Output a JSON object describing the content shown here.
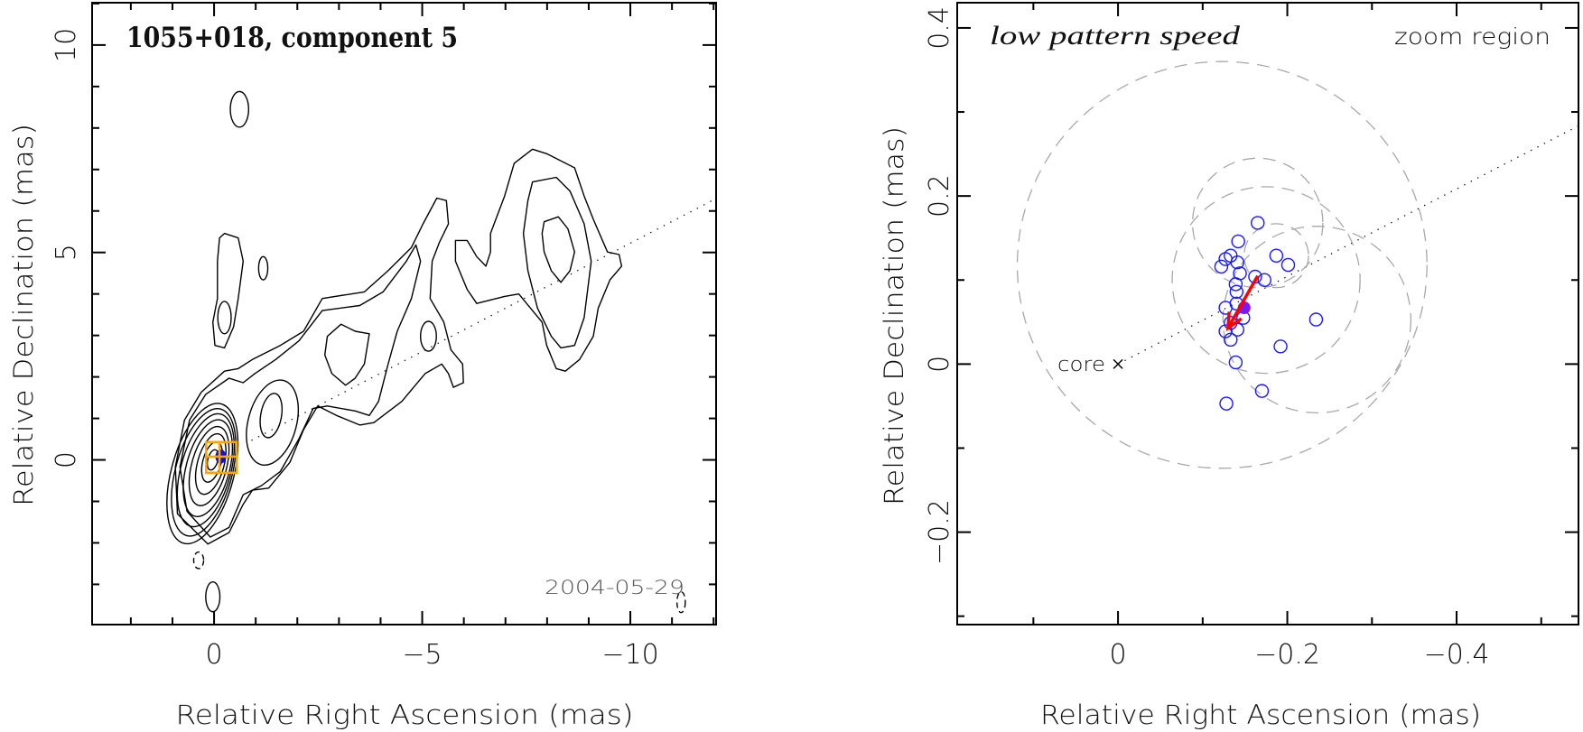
{
  "chart_data": [
    {
      "type": "contour",
      "panel": "left",
      "title": "1055+018, component 5",
      "annotation_date": "2004-05-29",
      "xlabel": "Relative Right Ascension (mas)",
      "ylabel": "Relative Declination (mas)",
      "xlim": [
        2.93,
        -12.06
      ],
      "ylim": [
        -3.97,
        11.02
      ],
      "xticks": {
        "values": [
          0,
          -5,
          -10
        ],
        "labels": [
          "0",
          "−5",
          "−10"
        ],
        "minor_step": 1
      },
      "yticks": {
        "values": [
          0,
          5,
          10
        ],
        "labels": [
          "0",
          "5",
          "10"
        ],
        "minor_step": 1
      },
      "colors": {
        "contour": "#000000",
        "box": "#FFA500",
        "component": "#1010E0"
      },
      "jet_axis": {
        "from": [
          -0.9,
          0.47
        ],
        "to": [
          -12.06,
          6.3
        ]
      },
      "zoom_box": {
        "x": [
          0.19,
          -0.544
        ],
        "y": [
          -0.31,
          0.43
        ],
        "cross": [
          -0.13,
          0.08
        ]
      },
      "component": {
        "cx": -0.16,
        "cy": 0.08,
        "rx": 0.13,
        "ry": 0.17
      },
      "core_ellipses": [
        {
          "cx": 0.03,
          "cy": 0.0,
          "rx": 0.12,
          "ry": 0.25,
          "angle": 15
        },
        {
          "cx": 0.05,
          "cy": -0.05,
          "rx": 0.22,
          "ry": 0.5,
          "angle": 15
        },
        {
          "cx": 0.08,
          "cy": -0.1,
          "rx": 0.32,
          "ry": 0.75,
          "angle": 15
        },
        {
          "cx": 0.12,
          "cy": -0.15,
          "rx": 0.42,
          "ry": 0.98,
          "angle": 15
        },
        {
          "cx": 0.15,
          "cy": -0.2,
          "rx": 0.52,
          "ry": 1.2,
          "angle": 15
        },
        {
          "cx": 0.2,
          "cy": -0.25,
          "rx": 0.6,
          "ry": 1.4,
          "angle": 15
        },
        {
          "cx": 0.25,
          "cy": -0.3,
          "rx": 0.68,
          "ry": 1.58,
          "angle": 15
        },
        {
          "cx": 0.28,
          "cy": -0.33,
          "rx": 0.75,
          "ry": 1.74,
          "angle": 15
        },
        {
          "cx": -1.37,
          "cy": 1.07,
          "rx": 0.25,
          "ry": 0.54,
          "angle": 10
        },
        {
          "cx": -1.4,
          "cy": 0.9,
          "rx": 0.58,
          "ry": 1.05,
          "angle": 15
        },
        {
          "cx": -5.15,
          "cy": 2.98,
          "rx": 0.19,
          "ry": 0.36,
          "angle": 0
        },
        {
          "cx": -0.61,
          "cy": 8.45,
          "rx": 0.22,
          "ry": 0.43,
          "angle": 0
        },
        {
          "cx": -0.25,
          "cy": 3.43,
          "rx": 0.16,
          "ry": 0.39,
          "angle": 0
        },
        {
          "cx": -1.18,
          "cy": 4.62,
          "rx": 0.11,
          "ry": 0.28,
          "angle": 0
        },
        {
          "cx": 0.03,
          "cy": -3.3,
          "rx": 0.17,
          "ry": 0.36,
          "angle": 0
        }
      ],
      "negative_ellipses": [
        {
          "cx": 0.37,
          "cy": -2.42,
          "rx": 0.12,
          "ry": 0.2,
          "angle": 0
        },
        {
          "cx": -11.22,
          "cy": -3.43,
          "rx": 0.1,
          "ry": 0.25,
          "angle": 0
        }
      ],
      "contours": [
        [
          [
            0.15,
            -2.03
          ],
          [
            0.88,
            -1.3
          ],
          [
            0.93,
            -0.17
          ],
          [
            0.71,
            0.96
          ],
          [
            0.31,
            1.63
          ],
          [
            -0.25,
            2.14
          ],
          [
            -0.58,
            2.2
          ],
          [
            -0.92,
            2.42
          ],
          [
            -1.59,
            2.76
          ],
          [
            -2.15,
            3.1
          ],
          [
            -2.6,
            3.89
          ],
          [
            -3.61,
            4.05
          ],
          [
            -4.18,
            4.56
          ],
          [
            -4.74,
            5.12
          ],
          [
            -5.02,
            5.69
          ],
          [
            -5.35,
            6.31
          ],
          [
            -5.58,
            6.25
          ],
          [
            -5.63,
            5.69
          ],
          [
            -5.41,
            5.24
          ],
          [
            -5.24,
            4.79
          ],
          [
            -5.19,
            3.89
          ],
          [
            -5.52,
            3.32
          ],
          [
            -5.69,
            2.65
          ],
          [
            -5.97,
            2.31
          ],
          [
            -5.99,
            1.86
          ],
          [
            -5.75,
            1.75
          ],
          [
            -5.63,
            2.08
          ],
          [
            -5.47,
            2.31
          ],
          [
            -5.07,
            2.08
          ],
          [
            -4.51,
            1.41
          ],
          [
            -3.84,
            0.9
          ],
          [
            -3.5,
            0.84
          ],
          [
            -2.94,
            1.07
          ],
          [
            -2.49,
            1.3
          ],
          [
            -2.15,
            0.73
          ],
          [
            -1.82,
            -0.06
          ],
          [
            -1.31,
            -0.68
          ],
          [
            -0.92,
            -0.73
          ],
          [
            -0.7,
            -1.07
          ],
          [
            -0.36,
            -1.75
          ]
        ],
        [
          [
            0.65,
            -1.24
          ],
          [
            0.82,
            -0.17
          ],
          [
            0.59,
            0.96
          ],
          [
            0.2,
            1.58
          ],
          [
            -0.36,
            1.97
          ],
          [
            -0.7,
            1.86
          ],
          [
            -0.98,
            2.08
          ],
          [
            -1.48,
            2.42
          ],
          [
            -2.04,
            2.87
          ],
          [
            -2.6,
            3.6
          ],
          [
            -3.5,
            3.72
          ],
          [
            -4.06,
            4.05
          ],
          [
            -4.62,
            4.79
          ],
          [
            -4.85,
            5.18
          ],
          [
            -4.96,
            4.79
          ],
          [
            -4.74,
            3.89
          ],
          [
            -4.4,
            3.1
          ],
          [
            -4.18,
            2.31
          ],
          [
            -3.95,
            1.41
          ],
          [
            -3.73,
            1.07
          ],
          [
            -3.39,
            1.18
          ],
          [
            -2.72,
            1.3
          ],
          [
            -2.38,
            1.24
          ],
          [
            -2.04,
            0.51
          ],
          [
            -1.59,
            -0.28
          ],
          [
            -1.14,
            -0.62
          ],
          [
            -0.7,
            -0.84
          ],
          [
            -0.36,
            -1.63
          ],
          [
            0.09,
            -1.86
          ]
        ],
        [
          [
            -2.72,
            2.98
          ],
          [
            -3.05,
            3.27
          ],
          [
            -3.39,
            3.1
          ],
          [
            -3.73,
            3.04
          ],
          [
            -3.61,
            2.31
          ],
          [
            -3.39,
            1.97
          ],
          [
            -3.16,
            1.8
          ],
          [
            -2.83,
            2.08
          ],
          [
            -2.66,
            2.53
          ]
        ],
        [
          [
            -0.25,
            5.46
          ],
          [
            -0.58,
            5.35
          ],
          [
            -0.7,
            4.79
          ],
          [
            -0.58,
            3.89
          ],
          [
            -0.47,
            3.21
          ],
          [
            -0.25,
            2.7
          ],
          [
            -0.02,
            2.76
          ],
          [
            0.03,
            3.32
          ],
          [
            -0.08,
            3.89
          ],
          [
            -0.08,
            4.79
          ],
          [
            -0.13,
            5.35
          ]
        ],
        [
          [
            -5.8,
            5.29
          ],
          [
            -6.08,
            5.29
          ],
          [
            -6.31,
            4.9
          ],
          [
            -6.53,
            4.67
          ],
          [
            -6.64,
            5.01
          ],
          [
            -6.64,
            5.46
          ],
          [
            -6.98,
            6.36
          ],
          [
            -7.21,
            7.15
          ],
          [
            -7.65,
            7.49
          ],
          [
            -7.99,
            7.38
          ],
          [
            -8.66,
            7.04
          ],
          [
            -8.89,
            6.36
          ],
          [
            -9.11,
            5.8
          ],
          [
            -9.45,
            5.01
          ],
          [
            -9.73,
            4.95
          ],
          [
            -9.79,
            4.67
          ],
          [
            -9.51,
            4.34
          ],
          [
            -9.23,
            3.66
          ],
          [
            -9.11,
            2.98
          ],
          [
            -8.78,
            2.42
          ],
          [
            -8.44,
            2.14
          ],
          [
            -8.22,
            2.2
          ],
          [
            -7.99,
            2.76
          ],
          [
            -7.88,
            3.32
          ],
          [
            -7.32,
            4.0
          ],
          [
            -6.98,
            3.94
          ],
          [
            -6.31,
            3.77
          ],
          [
            -6.08,
            4.11
          ],
          [
            -5.8,
            4.79
          ]
        ],
        [
          [
            -7.65,
            6.7
          ],
          [
            -8.22,
            6.81
          ],
          [
            -8.55,
            6.48
          ],
          [
            -8.89,
            5.69
          ],
          [
            -9.06,
            4.79
          ],
          [
            -8.89,
            3.43
          ],
          [
            -8.66,
            2.76
          ],
          [
            -8.33,
            2.7
          ],
          [
            -8.1,
            2.98
          ],
          [
            -7.77,
            3.66
          ],
          [
            -7.54,
            4.56
          ],
          [
            -7.43,
            5.46
          ],
          [
            -7.54,
            6.25
          ]
        ],
        [
          [
            -7.93,
            5.74
          ],
          [
            -8.27,
            5.86
          ],
          [
            -8.5,
            5.57
          ],
          [
            -8.66,
            5.01
          ],
          [
            -8.55,
            4.56
          ],
          [
            -8.33,
            4.28
          ],
          [
            -8.1,
            4.56
          ],
          [
            -7.93,
            5.01
          ],
          [
            -7.88,
            5.46
          ]
        ]
      ]
    },
    {
      "type": "scatter",
      "panel": "right",
      "title": "low pattern speed",
      "region_label": "zoom region",
      "core_label": "core",
      "xlabel": "Relative Right Ascension (mas)",
      "ylabel": "Relative Declination (mas)",
      "xlim": [
        0.19,
        -0.544
      ],
      "ylim": [
        -0.31,
        0.43
      ],
      "xticks": {
        "values": [
          0,
          -0.2,
          -0.4
        ],
        "labels": [
          "0",
          "−0.2",
          "−0.4"
        ],
        "minor_step": 0.1
      },
      "yticks": {
        "values": [
          -0.2,
          0,
          0.2,
          0.4
        ],
        "labels": [
          "−0.2",
          "0",
          "0.2",
          "0.4"
        ],
        "minor_step": 0.1
      },
      "colors": {
        "points": "#1a1aff",
        "mean": "#7a1af0",
        "arrow": "#ff0000",
        "circles": "#a8a8a8"
      },
      "jet_axis": {
        "from": [
          0,
          0
        ],
        "to": [
          -0.545,
          0.284
        ]
      },
      "points": [
        [
          -0.165,
          0.168
        ],
        [
          -0.142,
          0.146
        ],
        [
          -0.187,
          0.129
        ],
        [
          -0.201,
          0.118
        ],
        [
          -0.122,
          0.116
        ],
        [
          -0.127,
          0.125
        ],
        [
          -0.133,
          0.129
        ],
        [
          -0.141,
          0.121
        ],
        [
          -0.144,
          0.108
        ],
        [
          -0.162,
          0.104
        ],
        [
          -0.173,
          0.1
        ],
        [
          -0.139,
          0.095
        ],
        [
          -0.14,
          0.086
        ],
        [
          -0.127,
          0.067
        ],
        [
          -0.14,
          0.072
        ],
        [
          -0.148,
          0.055
        ],
        [
          -0.133,
          0.049
        ],
        [
          -0.141,
          0.041
        ],
        [
          -0.127,
          0.039
        ],
        [
          -0.133,
          0.029
        ],
        [
          -0.234,
          0.053
        ],
        [
          -0.192,
          0.021
        ],
        [
          -0.139,
          0.002
        ],
        [
          -0.17,
          -0.032
        ],
        [
          -0.128,
          -0.047
        ]
      ],
      "point_radius": 0.0075,
      "mean_position": [
        -0.149,
        0.067
      ],
      "arrow": {
        "from": [
          -0.165,
          0.105
        ],
        "to": [
          -0.13,
          0.043
        ]
      },
      "dashed_circles": [
        {
          "cx": -0.123,
          "cy": 0.118,
          "r": 0.242
        },
        {
          "cx": -0.165,
          "cy": 0.168,
          "r": 0.077
        },
        {
          "cx": -0.175,
          "cy": 0.1,
          "r": 0.111
        },
        {
          "cx": -0.235,
          "cy": 0.053,
          "r": 0.111
        },
        {
          "cx": -0.187,
          "cy": 0.129,
          "r": 0.038
        }
      ]
    }
  ]
}
